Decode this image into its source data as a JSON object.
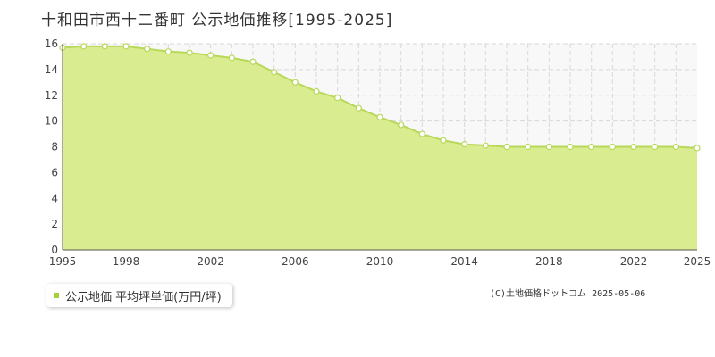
{
  "title": "十和田市西十二番町 公示地価推移[1995-2025]",
  "legend": {
    "label": "公示地価 平均坪単価(万円/坪)"
  },
  "copyright": "(C)土地価格ドットコム 2025-05-06",
  "colors": {
    "fill": "#d9ec8f",
    "line": "#b8d85a",
    "swatch": "#a8cf3c",
    "marker_fill": "#ffffff"
  },
  "chart_data": {
    "type": "area",
    "title": "十和田市西十二番町 公示地価推移[1995-2025]",
    "x": [
      1995,
      1996,
      1997,
      1998,
      1999,
      2000,
      2001,
      2002,
      2003,
      2004,
      2005,
      2006,
      2007,
      2008,
      2009,
      2010,
      2011,
      2012,
      2013,
      2014,
      2015,
      2016,
      2017,
      2018,
      2019,
      2020,
      2021,
      2022,
      2023,
      2024,
      2025
    ],
    "series": [
      {
        "name": "公示地価 平均坪単価(万円/坪)",
        "values": [
          15.7,
          15.8,
          15.8,
          15.8,
          15.6,
          15.4,
          15.3,
          15.1,
          14.9,
          14.6,
          13.8,
          13.0,
          12.3,
          11.8,
          11.0,
          10.3,
          9.7,
          9.0,
          8.5,
          8.2,
          8.1,
          8.0,
          8.0,
          8.0,
          8.0,
          8.0,
          8.0,
          8.0,
          8.0,
          8.0,
          7.9
        ]
      }
    ],
    "xticks": [
      1995,
      1998,
      2002,
      2006,
      2010,
      2014,
      2018,
      2022,
      2025
    ],
    "yticks": [
      0,
      2,
      4,
      6,
      8,
      10,
      12,
      14,
      16
    ],
    "xlim": [
      1995,
      2025
    ],
    "ylim": [
      0,
      16
    ],
    "grid": true,
    "legend_position": "bottom-left"
  }
}
